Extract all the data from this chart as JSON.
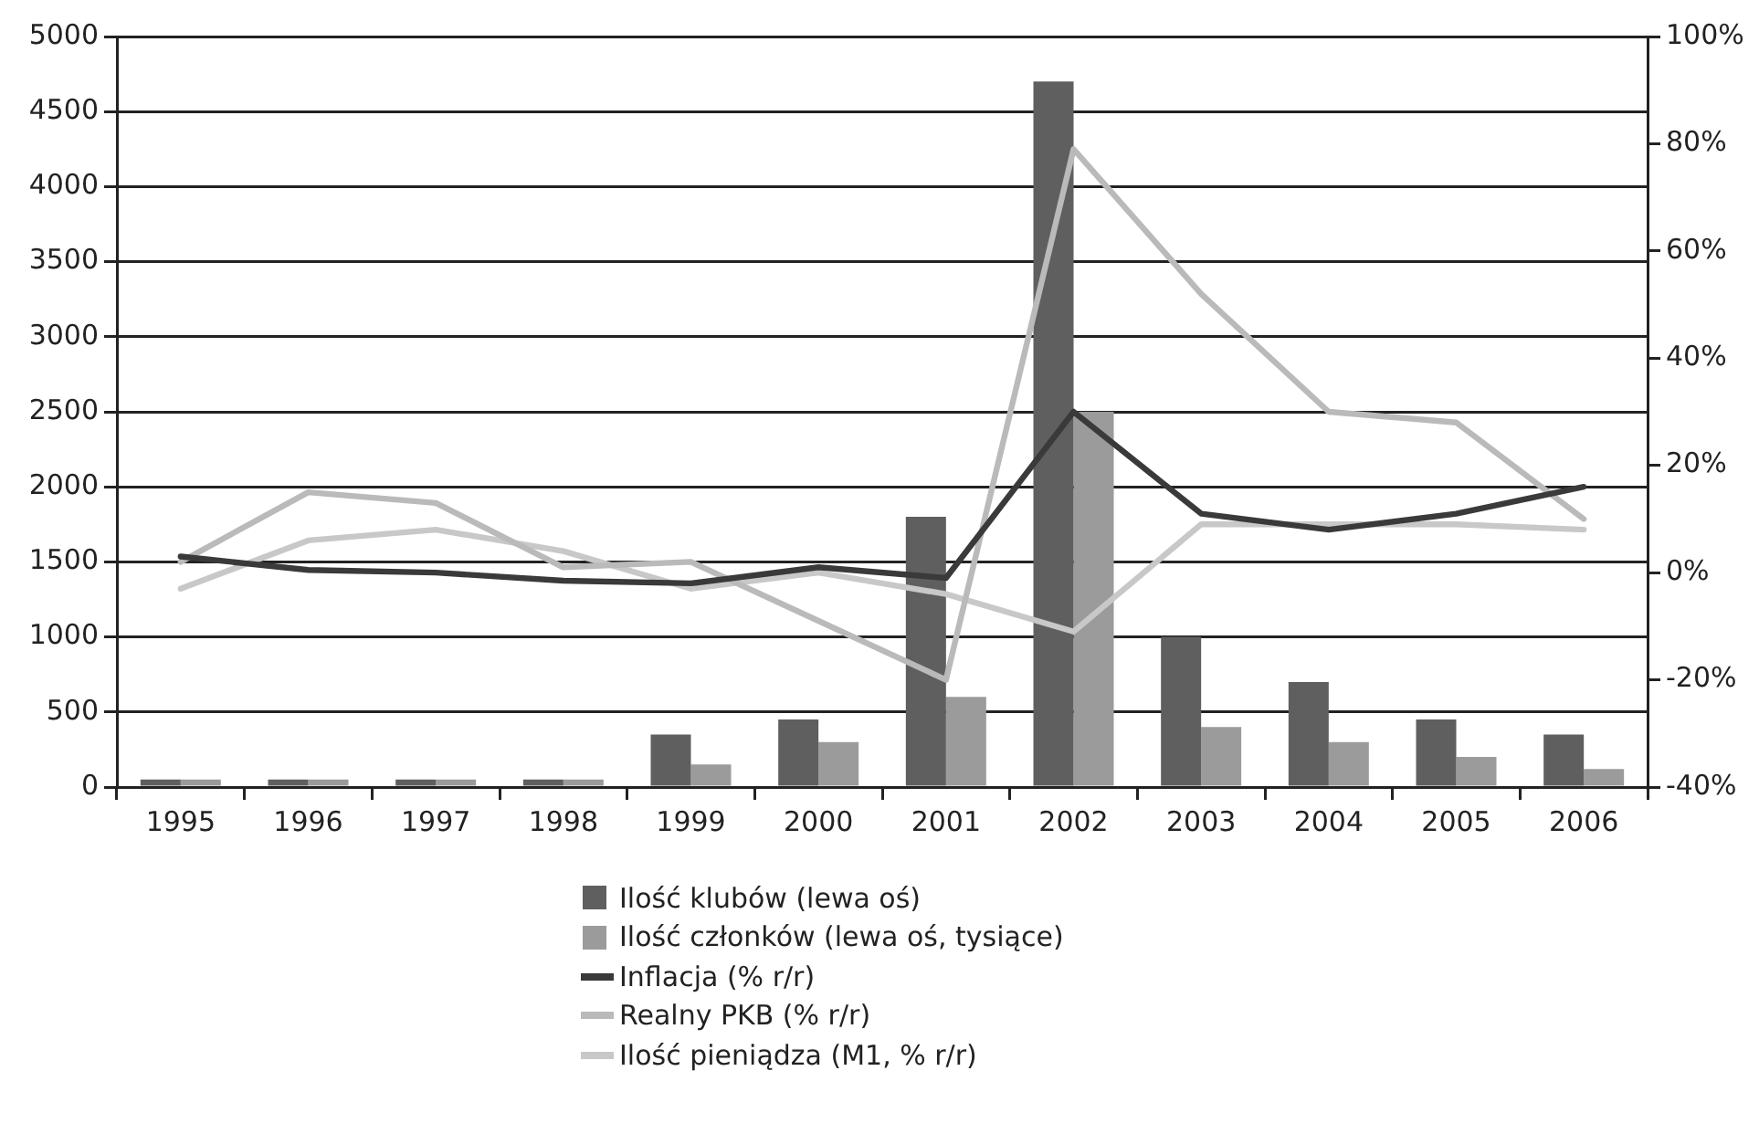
{
  "chart_data": {
    "type": "bar",
    "categories": [
      "1995",
      "1996",
      "1997",
      "1998",
      "1999",
      "2000",
      "2001",
      "2002",
      "2003",
      "2004",
      "2005",
      "2006"
    ],
    "series": [
      {
        "name": "Ilość klubów (lewa oś)",
        "color": "#5f5f5f",
        "values": [
          50,
          50,
          50,
          50,
          350,
          450,
          1800,
          4700,
          1000,
          700,
          450,
          350
        ]
      },
      {
        "name": "Ilość członków (lewa oś, tysiące)",
        "color": "#9b9b9b",
        "values": [
          50,
          50,
          50,
          50,
          150,
          300,
          600,
          2500,
          400,
          300,
          200,
          120
        ]
      },
      {
        "name": "Inflacja (% r/r)",
        "type": "line",
        "axis": "y2",
        "color": "#3a3a3a",
        "values": [
          3,
          0.5,
          0,
          -1.5,
          -2,
          1,
          -1,
          30,
          11,
          8,
          11,
          16
        ]
      },
      {
        "name": "Realny PKB (% r/r)",
        "type": "line",
        "axis": "y2",
        "color": "#bababa",
        "values": [
          2,
          15,
          13,
          1,
          2,
          -9,
          -20,
          79,
          52,
          30,
          28,
          10
        ]
      },
      {
        "name": "Ilość pieniądza (M1, % r/r)",
        "type": "line",
        "axis": "y2",
        "color": "#c8c8c8",
        "values": [
          -3,
          6,
          8,
          4,
          -3,
          0,
          -4,
          -11,
          9,
          9,
          9,
          8
        ]
      }
    ],
    "ylim": [
      0,
      5000
    ],
    "yticks": [
      0,
      500,
      1000,
      1500,
      2000,
      2500,
      3000,
      3500,
      4000,
      4500,
      5000
    ],
    "y2lim": [
      -40,
      100
    ],
    "y2ticks": [
      {
        "value": -40,
        "label": "-40%"
      },
      {
        "value": -20,
        "label": "-20%"
      },
      {
        "value": 0,
        "label": "0%"
      },
      {
        "value": 20,
        "label": "20%"
      },
      {
        "value": 40,
        "label": "40%"
      },
      {
        "value": 60,
        "label": "60%"
      },
      {
        "value": 80,
        "label": "80%"
      },
      {
        "value": 100,
        "label": "100%"
      }
    ],
    "grid": "y",
    "legend": "bottom",
    "marker": "none",
    "line_style": "solid"
  }
}
